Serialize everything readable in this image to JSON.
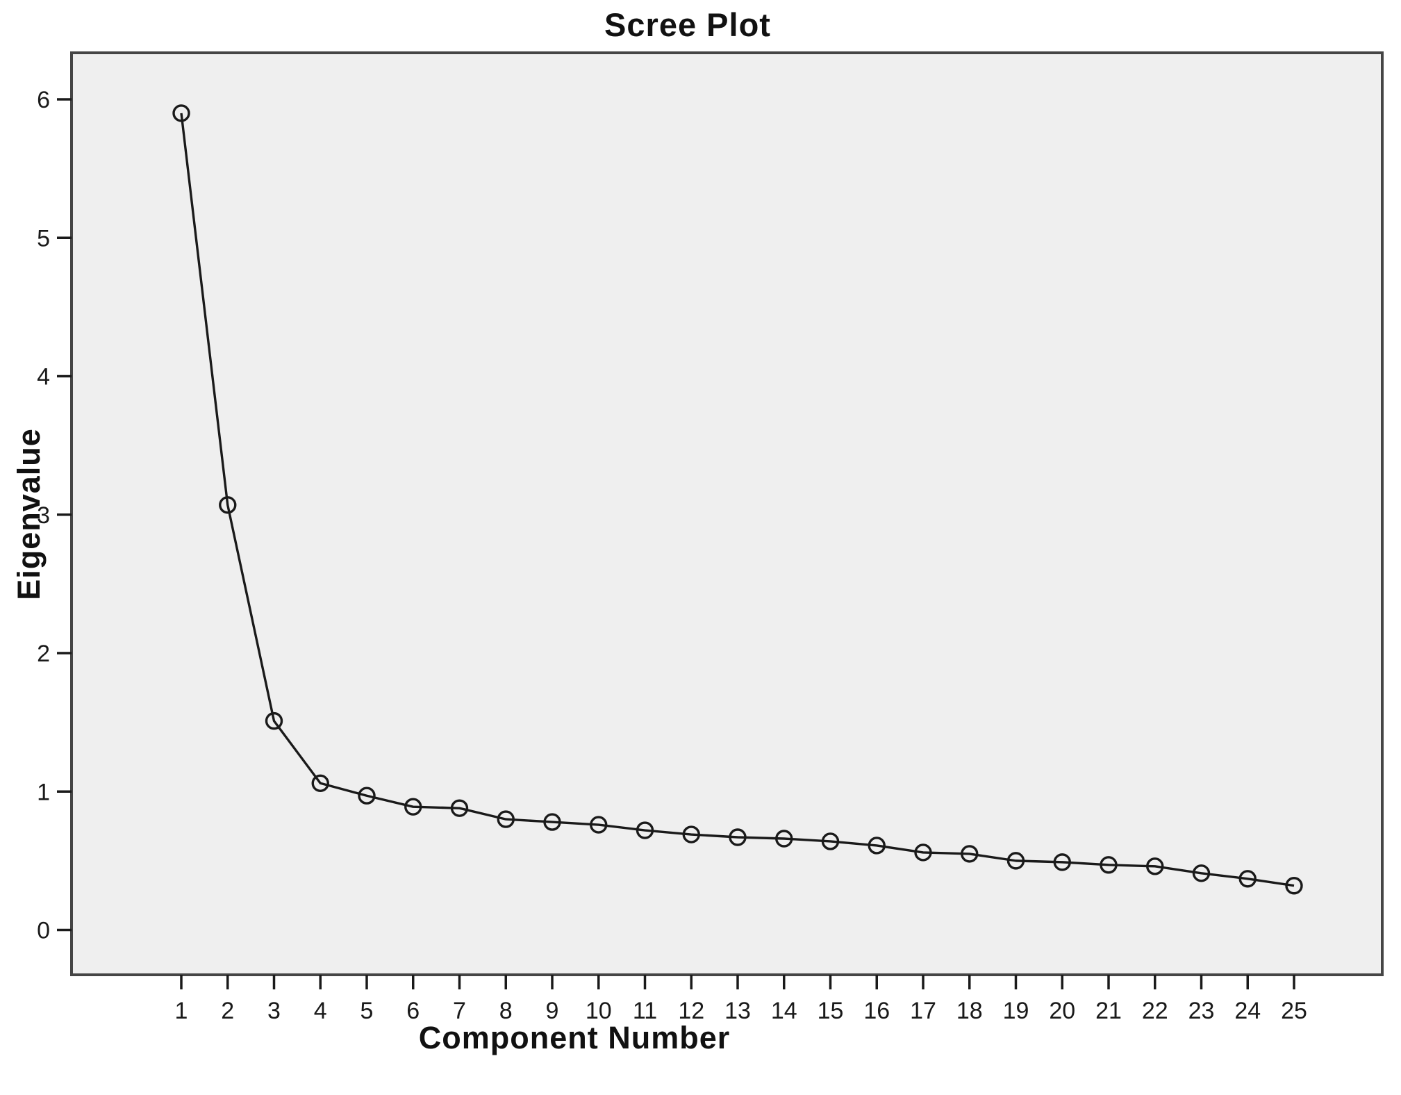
{
  "title": "Scree Plot",
  "chart_data": {
    "type": "line",
    "title": "Scree Plot",
    "xlabel": "Component Number",
    "ylabel": "Eigenvalue",
    "series_name": "Eigenvalue",
    "x": [
      1,
      2,
      3,
      4,
      5,
      6,
      7,
      8,
      9,
      10,
      11,
      12,
      13,
      14,
      15,
      16,
      17,
      18,
      19,
      20,
      21,
      22,
      23,
      24,
      25
    ],
    "values": [
      5.9,
      3.07,
      1.51,
      1.06,
      0.97,
      0.89,
      0.88,
      0.8,
      0.78,
      0.76,
      0.72,
      0.69,
      0.67,
      0.66,
      0.64,
      0.61,
      0.56,
      0.55,
      0.5,
      0.49,
      0.47,
      0.46,
      0.41,
      0.37,
      0.32
    ],
    "x_tick_labels": [
      "1",
      "2",
      "3",
      "4",
      "5",
      "6",
      "7",
      "8",
      "9",
      "10",
      "11",
      "12",
      "13",
      "14",
      "15",
      "16",
      "17",
      "18",
      "19",
      "20",
      "21",
      "22",
      "23",
      "24",
      "25"
    ],
    "y_tick_labels": [
      "0",
      "1",
      "2",
      "3",
      "4",
      "5",
      "6"
    ],
    "y_ticks": [
      0,
      1,
      2,
      3,
      4,
      5,
      6
    ],
    "ylim": [
      -0.33,
      6.34
    ],
    "grid": false,
    "legend": "none",
    "marker": "open-circle",
    "colors": {
      "line": "#1a1a1a",
      "marker_stroke": "#1a1a1a",
      "plot_background": "#efefef",
      "frame_border": "#454545",
      "tick": "#1a1a1a",
      "text": "#111111",
      "page_background": "#ffffff"
    }
  }
}
